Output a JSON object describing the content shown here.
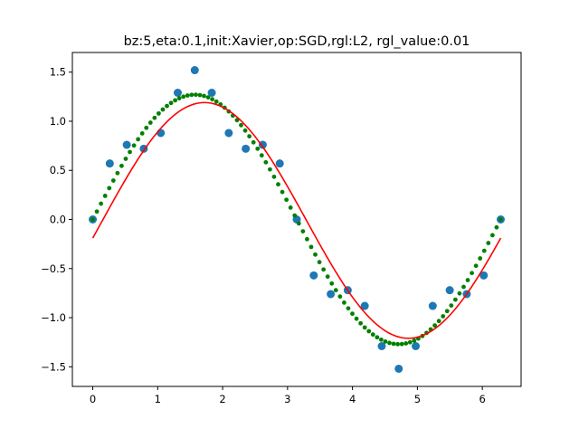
{
  "chart_data": {
    "type": "scatter",
    "title": "bz:5,eta:0.1,init:Xavier,op:SGD,rgl:L2, rgl_value:0.01",
    "xlabel": "",
    "ylabel": "",
    "xlim": [
      -0.314,
      6.597
    ],
    "ylim": [
      -1.7,
      1.7
    ],
    "xticks": [
      0,
      1,
      2,
      3,
      4,
      5,
      6
    ],
    "yticks": [
      -1.5,
      -1.0,
      -0.5,
      0.0,
      0.5,
      1.0,
      1.5
    ],
    "xtick_labels": [
      "0",
      "1",
      "2",
      "3",
      "4",
      "5",
      "6"
    ],
    "ytick_labels": [
      "−1.5",
      "−1.0",
      "−0.5",
      "0.0",
      "0.5",
      "1.0",
      "1.5"
    ],
    "grid": false,
    "legend": "none",
    "colors": {
      "samples": "#1f77b4",
      "target": "#008000",
      "fit": "#ff0000"
    },
    "series": [
      {
        "kind": "scatter-large",
        "x": [
          0.0,
          0.2618,
          0.5236,
          0.7854,
          1.0472,
          1.309,
          1.5708,
          1.8326,
          2.0944,
          2.3562,
          2.618,
          2.8798,
          3.1416,
          3.4034,
          3.6652,
          3.927,
          4.1888,
          4.4506,
          4.7124,
          4.9742,
          5.236,
          5.4978,
          5.7596,
          6.0214,
          6.2832
        ],
        "y": [
          0.0,
          0.57,
          0.76,
          0.72,
          0.88,
          1.29,
          1.52,
          1.29,
          0.88,
          0.72,
          0.76,
          0.57,
          0.0,
          -0.57,
          -0.76,
          -0.72,
          -0.88,
          -1.29,
          -1.52,
          -1.29,
          -0.88,
          -0.72,
          -0.76,
          -0.57,
          0.0
        ]
      },
      {
        "kind": "scatter-small",
        "function": "1.27*sin(x)",
        "x_range": [
          0,
          6.2832
        ],
        "points": 100
      },
      {
        "kind": "line",
        "function": "1.2*sin(x-0.15)-0.01",
        "x_range": [
          0,
          6.2832
        ],
        "points": 200
      }
    ]
  }
}
